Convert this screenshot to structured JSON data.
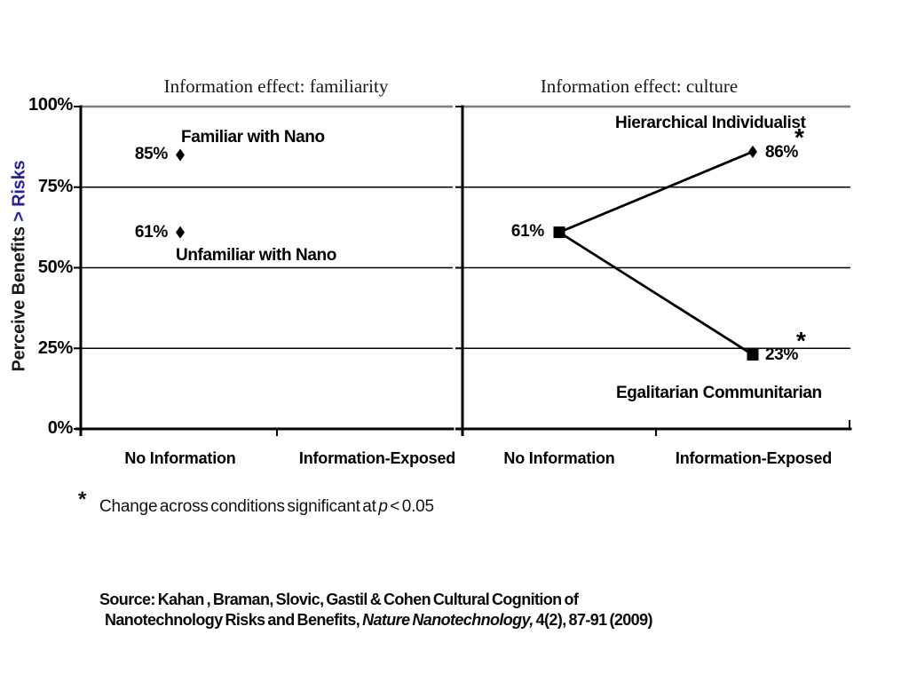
{
  "colors": {
    "accent_blue": "#23239E",
    "top_border_gray": "#7f7f7f",
    "ink": "#000000"
  },
  "y_axis": {
    "title_main": "Perceive Benefits ",
    "title_accent": "> Risks",
    "ticks": [
      {
        "label": "100%",
        "value": 100
      },
      {
        "label": "75%",
        "value": 75
      },
      {
        "label": "50%",
        "value": 50
      },
      {
        "label": "25%",
        "value": 25
      },
      {
        "label": "0%",
        "value": 0
      }
    ]
  },
  "footnote": {
    "star": "*",
    "prefix": "Change across conditions significant at ",
    "p_symbol": "p",
    "suffix": " < 0.05"
  },
  "source": {
    "line1": "Source: Kahan , Braman, Slovic, Gastil & Cohen Cultural Cognition of",
    "line2_prefix": "Nanotechnology Risks and Benefits, ",
    "line2_italic": "Nature Nanotechnology,",
    "line2_suffix": " 4(2), 87-91 (2009)"
  },
  "chart_data": {
    "type": "line",
    "significance_marker": "*",
    "y_axis_label": "Perceive Benefits > Risks",
    "ylim": [
      0,
      100
    ],
    "y_ticks_percent": [
      0,
      25,
      50,
      75,
      100
    ],
    "grid": true,
    "panels": [
      {
        "title": "Information effect: familiarity",
        "categories": [
          "No Information",
          "Information-Exposed"
        ],
        "series": [
          {
            "name": "Familiar with Nano",
            "marker": "diamond",
            "points": [
              {
                "category": "No Information",
                "value": 85,
                "label": "85%"
              }
            ]
          },
          {
            "name": "Unfamiliar with Nano",
            "marker": "diamond",
            "points": [
              {
                "category": "No Information",
                "value": 61,
                "label": "61%"
              }
            ]
          }
        ]
      },
      {
        "title": "Information effect: culture",
        "categories": [
          "No Information",
          "Information-Exposed"
        ],
        "series": [
          {
            "name": "Hierarchical Individualist",
            "marker": "diamond",
            "points": [
              {
                "category": "No Information",
                "value": 61,
                "label": "61%"
              },
              {
                "category": "Information-Exposed",
                "value": 86,
                "label": "86%",
                "significant": true
              }
            ]
          },
          {
            "name": "Egalitarian Communitarian",
            "marker": "square",
            "points": [
              {
                "category": "No Information",
                "value": 61,
                "label": ""
              },
              {
                "category": "Information-Exposed",
                "value": 23,
                "label": "23%",
                "significant": true
              }
            ]
          }
        ]
      }
    ]
  }
}
